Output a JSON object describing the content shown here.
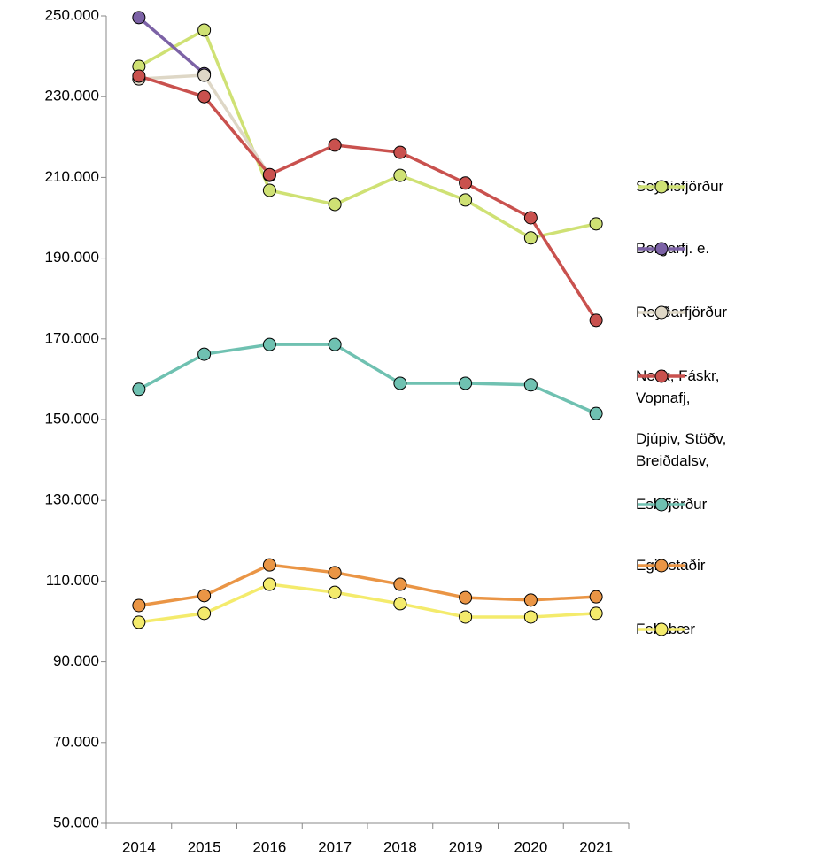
{
  "chart_data": {
    "type": "line",
    "categories": [
      "2014",
      "2015",
      "2016",
      "2017",
      "2018",
      "2019",
      "2020",
      "2021"
    ],
    "series": [
      {
        "name": "Seyðisfjörður",
        "color": "#cfe174",
        "values": [
          237500,
          246500,
          206800,
          203300,
          210500,
          204400,
          195000,
          198500
        ]
      },
      {
        "name": "Borgarfj. e.",
        "color": "#7c62a6",
        "values": [
          249600,
          235700,
          null,
          null,
          null,
          null,
          null,
          null
        ]
      },
      {
        "name": "Reyðarfjörður",
        "color": "#ded7c6",
        "values": [
          234400,
          235300,
          210500,
          null,
          null,
          null,
          null,
          null
        ]
      },
      {
        "name": "Nesk, Fáskr, Vopnafj,",
        "color": "#c9514e",
        "values": [
          235100,
          230000,
          210700,
          218000,
          216200,
          208600,
          200000,
          174600
        ]
      },
      {
        "name": "Djúpiv, Stöðv, Breiðdalsv,",
        "values": [
          null,
          null,
          null,
          null,
          null,
          null,
          null,
          null
        ]
      },
      {
        "name": "Eskifjörður",
        "color": "#6fc1b1",
        "values": [
          157500,
          166200,
          168600,
          168600,
          159000,
          159000,
          158600,
          151500
        ]
      },
      {
        "name": "Egilsstaðir",
        "color": "#ea9545",
        "values": [
          103950,
          106400,
          114000,
          112100,
          109200,
          105900,
          105300,
          106100
        ]
      },
      {
        "name": "Fellabær",
        "color": "#f4eb6c",
        "values": [
          99800,
          102000,
          109200,
          107200,
          104400,
          101100,
          101100,
          102000
        ]
      }
    ],
    "ylim": [
      50000,
      250000
    ],
    "yticks": [
      {
        "value": 50000,
        "label": "50.000"
      },
      {
        "value": 70000,
        "label": "70.000"
      },
      {
        "value": 90000,
        "label": "90.000"
      },
      {
        "value": 110000,
        "label": "110.000"
      },
      {
        "value": 130000,
        "label": "130.000"
      },
      {
        "value": 150000,
        "label": "150.000"
      },
      {
        "value": 170000,
        "label": "170.000"
      },
      {
        "value": 190000,
        "label": "190.000"
      },
      {
        "value": 210000,
        "label": "210.000"
      },
      {
        "value": 230000,
        "label": "230.000"
      },
      {
        "value": 250000,
        "label": "250.000"
      }
    ],
    "grid": false,
    "legend": "right"
  }
}
